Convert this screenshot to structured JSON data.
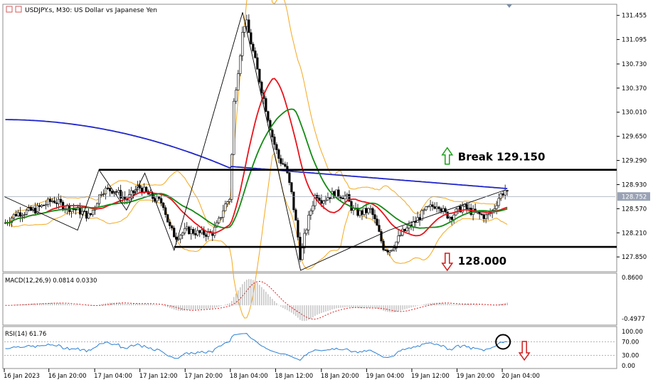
{
  "chart_data": {
    "type": "candlestick",
    "title": "USDJPY.s, M30:  US Dollar vs Japanese Yen",
    "price_axis": {
      "ticks": [
        "131.455",
        "131.095",
        "130.730",
        "130.370",
        "130.010",
        "129.650",
        "129.290",
        "128.930",
        "128.570",
        "128.210",
        "127.850"
      ],
      "current_price": "128.752",
      "range": [
        127.65,
        131.6
      ]
    },
    "time_axis": {
      "ticks": [
        "16 Jan 2023",
        "16 Jan 20:00",
        "17 Jan 04:00",
        "17 Jan 12:00",
        "17 Jan 20:00",
        "18 Jan 04:00",
        "18 Jan 12:00",
        "18 Jan 20:00",
        "19 Jan 04:00",
        "19 Jan 12:00",
        "19 Jan 20:00",
        "20 Jan 04:00"
      ]
    },
    "indicators_main": [
      "Moving average (blue, long period)",
      "Moving average (red)",
      "Moving average (green)",
      "Bollinger Bands (orange)"
    ],
    "levels": [
      {
        "label": "Break 129.150",
        "price": 129.15,
        "arrow": "up"
      },
      {
        "label": "128.000",
        "price": 128.0,
        "arrow": "down"
      }
    ],
    "price_path": [
      [
        0,
        128.35
      ],
      [
        0.02,
        128.5
      ],
      [
        0.05,
        128.55
      ],
      [
        0.08,
        128.7
      ],
      [
        0.1,
        128.6
      ],
      [
        0.12,
        128.55
      ],
      [
        0.14,
        128.45
      ],
      [
        0.16,
        128.85
      ],
      [
        0.18,
        128.85
      ],
      [
        0.2,
        128.7
      ],
      [
        0.22,
        128.9
      ],
      [
        0.24,
        128.75
      ],
      [
        0.26,
        128.65
      ],
      [
        0.27,
        128.3
      ],
      [
        0.28,
        128.15
      ],
      [
        0.3,
        128.25
      ],
      [
        0.32,
        128.2
      ],
      [
        0.34,
        128.2
      ],
      [
        0.35,
        128.35
      ],
      [
        0.36,
        128.6
      ],
      [
        0.37,
        128.75
      ],
      [
        0.375,
        130.1
      ],
      [
        0.385,
        130.8
      ],
      [
        0.39,
        131.2
      ],
      [
        0.395,
        131.4
      ],
      [
        0.4,
        131.2
      ],
      [
        0.41,
        130.8
      ],
      [
        0.42,
        130.4
      ],
      [
        0.43,
        130.0
      ],
      [
        0.44,
        129.6
      ],
      [
        0.45,
        129.3
      ],
      [
        0.46,
        129.2
      ],
      [
        0.47,
        128.8
      ],
      [
        0.48,
        128.2
      ],
      [
        0.485,
        127.8
      ],
      [
        0.49,
        128.1
      ],
      [
        0.5,
        128.5
      ],
      [
        0.51,
        128.8
      ],
      [
        0.52,
        128.7
      ],
      [
        0.54,
        128.8
      ],
      [
        0.56,
        128.75
      ],
      [
        0.57,
        128.55
      ],
      [
        0.58,
        128.5
      ],
      [
        0.6,
        128.55
      ],
      [
        0.61,
        128.3
      ],
      [
        0.62,
        128.0
      ],
      [
        0.63,
        127.95
      ],
      [
        0.64,
        128.05
      ],
      [
        0.65,
        128.2
      ],
      [
        0.67,
        128.35
      ],
      [
        0.69,
        128.55
      ],
      [
        0.71,
        128.65
      ],
      [
        0.72,
        128.5
      ],
      [
        0.73,
        128.45
      ],
      [
        0.75,
        128.6
      ],
      [
        0.77,
        128.5
      ],
      [
        0.79,
        128.45
      ],
      [
        0.8,
        128.55
      ],
      [
        0.81,
        128.75
      ],
      [
        0.82,
        128.85
      ],
      [
        0.825,
        128.75
      ]
    ],
    "macd": {
      "label": "MACD(12,26,9) 0.0814 0.0330",
      "ticks": [
        "0.8600",
        "-0.4977"
      ]
    },
    "rsi": {
      "label": "RSI(14) 61.76",
      "ticks": [
        "100.00",
        "70.00",
        "30.00",
        "0.00"
      ],
      "levels": [
        70,
        30
      ]
    }
  }
}
